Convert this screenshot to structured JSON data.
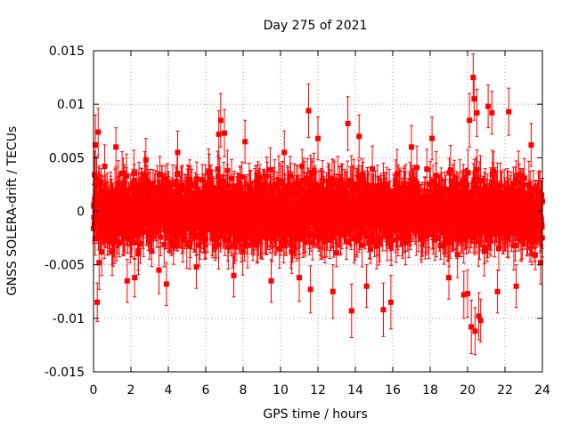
{
  "chart_data": {
    "type": "scatter",
    "title": "Day 275 of 2021",
    "xlabel": "GPS time / hours",
    "ylabel": "GNSS SOLERA-drift / TECUs",
    "xlim": [
      0,
      24
    ],
    "ylim": [
      -0.015,
      0.015
    ],
    "x_ticks": [
      0,
      2,
      4,
      6,
      8,
      10,
      12,
      14,
      16,
      18,
      20,
      22,
      24
    ],
    "x_tick_labels": [
      "0",
      "2",
      "4",
      "6",
      "8",
      "10",
      "12",
      "14",
      "16",
      "18",
      "20",
      "22",
      "24"
    ],
    "y_ticks": [
      -0.015,
      -0.01,
      -0.005,
      0,
      0.005,
      0.01,
      0.015
    ],
    "y_tick_labels": [
      "-0.015",
      "-0.01",
      "-0.005",
      "0",
      "0.005",
      "0.01",
      "0.015"
    ],
    "grid": true,
    "marker": "square",
    "error_bars": true,
    "series_color": "#ff0000",
    "series": [
      {
        "points": [
          {
            "x": 0.1,
            "y": 0.0062,
            "err": 0.0028
          },
          {
            "x": 0.2,
            "y": -0.0085,
            "err": 0.0018
          },
          {
            "x": 0.25,
            "y": 0.0074,
            "err": 0.0022
          },
          {
            "x": 0.3,
            "y": -0.0048,
            "err": 0.0025
          },
          {
            "x": 0.6,
            "y": 0.0042,
            "err": 0.002
          },
          {
            "x": 1.0,
            "y": -0.0038,
            "err": 0.0022
          },
          {
            "x": 1.2,
            "y": 0.006,
            "err": 0.0018
          },
          {
            "x": 1.8,
            "y": -0.0065,
            "err": 0.002
          },
          {
            "x": 2.2,
            "y": -0.0062,
            "err": 0.0018
          },
          {
            "x": 2.8,
            "y": 0.0048,
            "err": 0.002
          },
          {
            "x": 3.5,
            "y": -0.0055,
            "err": 0.0022
          },
          {
            "x": 3.9,
            "y": -0.0068,
            "err": 0.002
          },
          {
            "x": 4.5,
            "y": 0.0055,
            "err": 0.002
          },
          {
            "x": 5.5,
            "y": -0.0052,
            "err": 0.002
          },
          {
            "x": 6.7,
            "y": 0.0072,
            "err": 0.0022
          },
          {
            "x": 6.8,
            "y": 0.0085,
            "err": 0.0025
          },
          {
            "x": 7.0,
            "y": 0.0073,
            "err": 0.0022
          },
          {
            "x": 7.5,
            "y": -0.006,
            "err": 0.002
          },
          {
            "x": 8.1,
            "y": 0.0065,
            "err": 0.002
          },
          {
            "x": 9.5,
            "y": -0.0065,
            "err": 0.002
          },
          {
            "x": 10.2,
            "y": 0.0055,
            "err": 0.002
          },
          {
            "x": 11.0,
            "y": -0.0062,
            "err": 0.0022
          },
          {
            "x": 11.5,
            "y": 0.0094,
            "err": 0.0025
          },
          {
            "x": 11.6,
            "y": -0.0073,
            "err": 0.0022
          },
          {
            "x": 12.0,
            "y": 0.0068,
            "err": 0.002
          },
          {
            "x": 12.8,
            "y": -0.0075,
            "err": 0.0025
          },
          {
            "x": 13.6,
            "y": 0.0082,
            "err": 0.0025
          },
          {
            "x": 13.8,
            "y": -0.0093,
            "err": 0.0025
          },
          {
            "x": 14.2,
            "y": 0.007,
            "err": 0.002
          },
          {
            "x": 14.6,
            "y": -0.007,
            "err": 0.002
          },
          {
            "x": 15.5,
            "y": -0.0092,
            "err": 0.0025
          },
          {
            "x": 15.9,
            "y": -0.0085,
            "err": 0.0025
          },
          {
            "x": 17.0,
            "y": 0.006,
            "err": 0.002
          },
          {
            "x": 18.1,
            "y": 0.0068,
            "err": 0.002
          },
          {
            "x": 19.0,
            "y": -0.0062,
            "err": 0.002
          },
          {
            "x": 19.8,
            "y": -0.0078,
            "err": 0.0022
          },
          {
            "x": 20.0,
            "y": -0.0077,
            "err": 0.0022
          },
          {
            "x": 20.1,
            "y": 0.0085,
            "err": 0.0025
          },
          {
            "x": 20.2,
            "y": -0.0108,
            "err": 0.0025
          },
          {
            "x": 20.3,
            "y": 0.0125,
            "err": 0.0022
          },
          {
            "x": 20.35,
            "y": 0.0105,
            "err": 0.002
          },
          {
            "x": 20.4,
            "y": -0.0112,
            "err": 0.0022
          },
          {
            "x": 20.5,
            "y": 0.0092,
            "err": 0.0022
          },
          {
            "x": 20.6,
            "y": -0.0098,
            "err": 0.0022
          },
          {
            "x": 20.7,
            "y": -0.0102,
            "err": 0.002
          },
          {
            "x": 21.1,
            "y": 0.0098,
            "err": 0.002
          },
          {
            "x": 21.3,
            "y": 0.0092,
            "err": 0.002
          },
          {
            "x": 21.6,
            "y": -0.0075,
            "err": 0.002
          },
          {
            "x": 22.2,
            "y": 0.0093,
            "err": 0.0022
          },
          {
            "x": 22.6,
            "y": -0.007,
            "err": 0.002
          },
          {
            "x": 23.4,
            "y": 0.0062,
            "err": 0.002
          },
          {
            "x": 23.9,
            "y": -0.0048,
            "err": 0.002
          }
        ],
        "band": {
          "min_value": -0.0045,
          "max_value": 0.0045,
          "err": 0.0018
        }
      }
    ]
  }
}
